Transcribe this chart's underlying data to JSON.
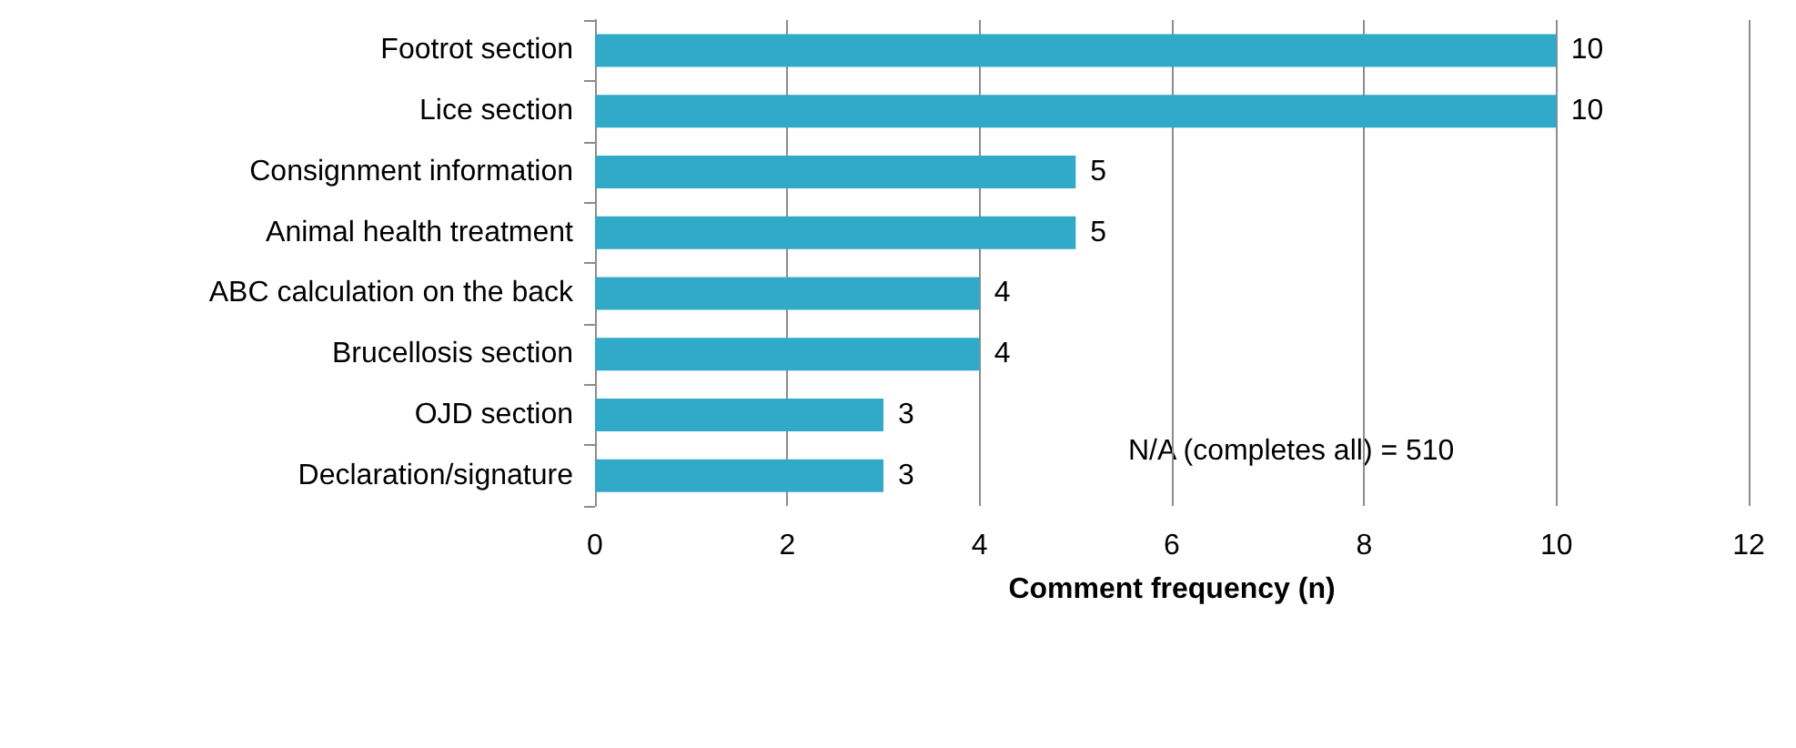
{
  "chart_data": {
    "type": "bar",
    "orientation": "horizontal",
    "categories": [
      "Footrot section",
      "Lice section",
      "Consignment information",
      "Animal health treatment",
      "ABC calculation on the back",
      "Brucellosis section",
      "OJD section",
      "Declaration/signature"
    ],
    "values": [
      10,
      10,
      5,
      5,
      4,
      4,
      3,
      3
    ],
    "color": "#31a9c9",
    "xlabel": "Comment frequency (n)",
    "xlim": [
      0,
      12
    ],
    "xticks": [
      0,
      2,
      4,
      6,
      8,
      10,
      12
    ],
    "grid": "x",
    "data_labels": true,
    "annotations": [
      "N/A (completes all) = 510"
    ]
  }
}
